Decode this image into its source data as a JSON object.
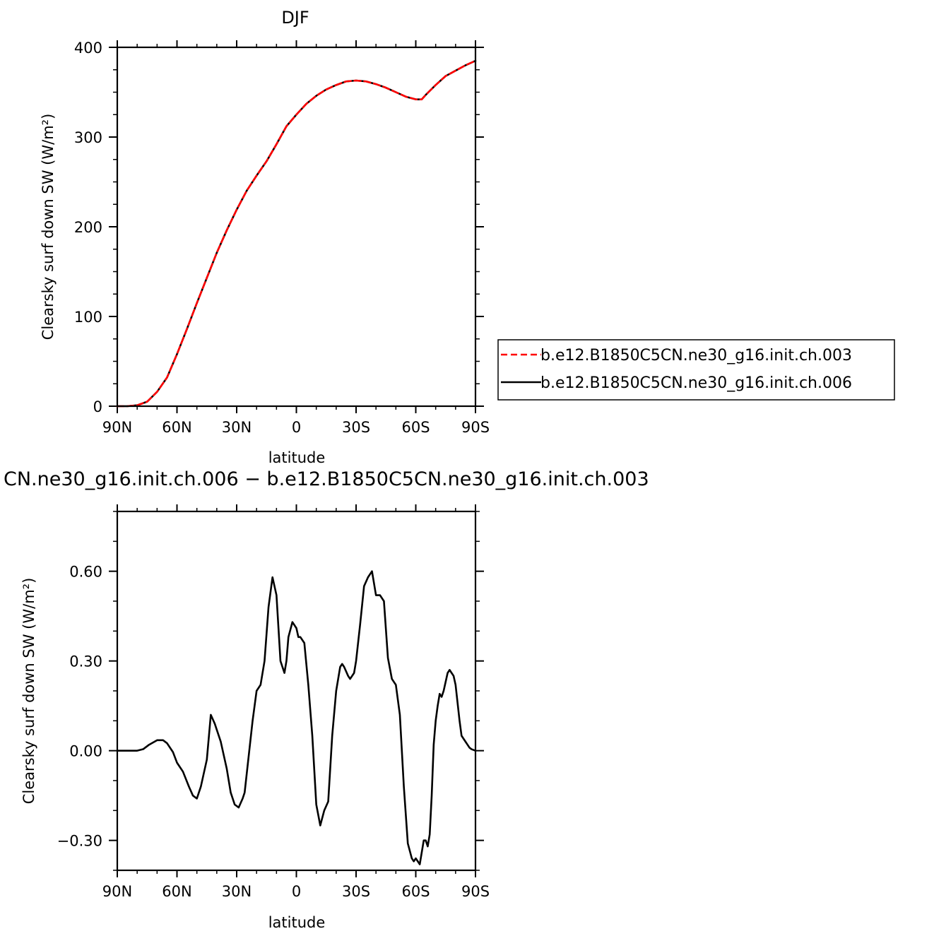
{
  "chart_data": [
    {
      "type": "line",
      "title": "DJF",
      "xlabel": "latitude",
      "ylabel": "Clearsky surf down SW (W/m²)",
      "x_ticks": [
        90,
        60,
        30,
        0,
        -30,
        -60,
        -90
      ],
      "x_tick_labels": [
        "90N",
        "60N",
        "30N",
        "0",
        "30S",
        "60S",
        "90S"
      ],
      "y_ticks": [
        0,
        100,
        200,
        300,
        400
      ],
      "y_tick_labels": [
        "0",
        "100",
        "200",
        "300",
        "400"
      ],
      "xlim": [
        90,
        -90
      ],
      "ylim": [
        0,
        400
      ],
      "legend_position": "right",
      "series": [
        {
          "name": "b.e12.B1850C5CN.ne30_g16.init.ch.003",
          "color": "#ff0000",
          "dash": "dashed",
          "x": [
            90,
            85,
            80,
            75,
            70,
            65,
            60,
            55,
            50,
            45,
            40,
            35,
            30,
            25,
            20,
            15,
            10,
            5,
            0,
            -5,
            -10,
            -15,
            -20,
            -25,
            -30,
            -35,
            -40,
            -45,
            -50,
            -55,
            -60,
            -63,
            -65,
            -70,
            -75,
            -80,
            -85,
            -90
          ],
          "y": [
            0,
            0,
            1,
            5,
            16,
            32,
            58,
            86,
            115,
            143,
            171,
            196,
            219,
            240,
            257,
            273,
            292,
            312,
            325,
            337,
            346,
            353,
            358,
            362,
            363,
            362,
            359,
            355,
            350,
            345,
            342,
            342,
            347,
            358,
            368,
            374,
            380,
            385
          ]
        },
        {
          "name": "b.e12.B1850C5CN.ne30_g16.init.ch.006",
          "color": "#000000",
          "dash": "solid",
          "x": [
            90,
            85,
            80,
            75,
            70,
            65,
            60,
            55,
            50,
            45,
            40,
            35,
            30,
            25,
            20,
            15,
            10,
            5,
            0,
            -5,
            -10,
            -15,
            -20,
            -25,
            -30,
            -35,
            -40,
            -45,
            -50,
            -55,
            -60,
            -63,
            -65,
            -70,
            -75,
            -80,
            -85,
            -90
          ],
          "y": [
            0,
            0,
            1,
            5,
            16,
            32,
            58,
            86,
            115,
            143,
            171,
            196,
            219,
            240,
            257,
            273,
            292,
            312,
            325,
            337,
            346,
            353,
            358,
            362,
            363,
            362,
            359,
            355,
            350,
            345,
            342,
            342,
            347,
            358,
            368,
            374,
            380,
            385
          ]
        }
      ]
    },
    {
      "type": "line",
      "title": "CN.ne30_g16.init.ch.006 − b.e12.B1850C5CN.ne30_g16.init.ch.003",
      "xlabel": "latitude",
      "ylabel": "Clearsky surf down SW (W/m²)",
      "x_ticks": [
        90,
        60,
        30,
        0,
        -30,
        -60,
        -90
      ],
      "x_tick_labels": [
        "90N",
        "60N",
        "30N",
        "0",
        "30S",
        "60S",
        "90S"
      ],
      "y_ticks": [
        -0.3,
        0,
        0.3,
        0.6
      ],
      "y_tick_labels": [
        "−0.30",
        "0.00",
        "0.30",
        "0.60"
      ],
      "xlim": [
        90,
        -90
      ],
      "ylim": [
        -0.4,
        0.8
      ],
      "series": [
        {
          "color": "#000000",
          "dash": "solid",
          "x": [
            90,
            80,
            77,
            74,
            70,
            67,
            65,
            62,
            60,
            57,
            54,
            52,
            50,
            48,
            47,
            45,
            43,
            41,
            40,
            38,
            36,
            35,
            33,
            31,
            29,
            27,
            26,
            24,
            22,
            20,
            18,
            16,
            14,
            12,
            10,
            8,
            6,
            5,
            4,
            2,
            0,
            -1,
            -2,
            -4,
            -6,
            -8,
            -10,
            -12,
            -14,
            -16,
            -18,
            -20,
            -22,
            -23,
            -24,
            -26,
            -27,
            -29,
            -30,
            -32,
            -34,
            -36,
            -38,
            -40,
            -42,
            -44,
            -46,
            -48,
            -50,
            -52,
            -54,
            -56,
            -58,
            -59,
            -60,
            -62,
            -63,
            -64,
            -65,
            -66,
            -67,
            -68,
            -69,
            -70,
            -71,
            -72,
            -73,
            -74,
            -75,
            -76,
            -77,
            -78,
            -79,
            -80,
            -82,
            -83,
            -85,
            -86,
            -87,
            -88,
            -90
          ],
          "y": [
            0,
            0,
            0.005,
            0.02,
            0.035,
            0.035,
            0.025,
            -0.005,
            -0.04,
            -0.07,
            -0.12,
            -0.15,
            -0.16,
            -0.12,
            -0.09,
            -0.03,
            0.12,
            0.09,
            0.07,
            0.03,
            -0.03,
            -0.06,
            -0.14,
            -0.18,
            -0.19,
            -0.16,
            -0.14,
            -0.02,
            0.1,
            0.2,
            0.22,
            0.3,
            0.48,
            0.58,
            0.52,
            0.3,
            0.26,
            0.3,
            0.38,
            0.43,
            0.41,
            0.38,
            0.38,
            0.36,
            0.22,
            0.05,
            -0.18,
            -0.25,
            -0.2,
            -0.17,
            0.05,
            0.2,
            0.28,
            0.29,
            0.28,
            0.25,
            0.24,
            0.26,
            0.3,
            0.42,
            0.55,
            0.58,
            0.6,
            0.52,
            0.52,
            0.5,
            0.31,
            0.24,
            0.22,
            0.12,
            -0.12,
            -0.31,
            -0.36,
            -0.37,
            -0.36,
            -0.38,
            -0.34,
            -0.3,
            -0.3,
            -0.32,
            -0.28,
            -0.15,
            0.02,
            0.1,
            0.15,
            0.19,
            0.18,
            0.2,
            0.23,
            0.26,
            0.27,
            0.26,
            0.25,
            0.22,
            0.1,
            0.05,
            0.03,
            0.02,
            0.01,
            0.005,
            0
          ]
        }
      ]
    }
  ]
}
